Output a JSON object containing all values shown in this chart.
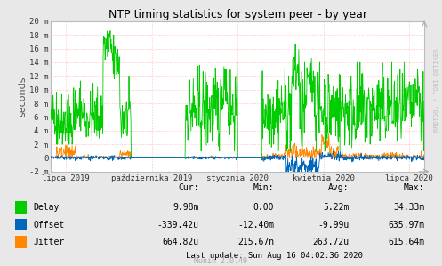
{
  "title": "NTP timing statistics for system peer - by year",
  "ylabel": "seconds",
  "fig_bg_color": "#e8e8e8",
  "plot_bg_color": "#ffffff",
  "grid_color": "#ff9999",
  "ylim": [
    -0.002,
    0.02
  ],
  "yticks_vals": [
    -0.002,
    0.0,
    0.002,
    0.004,
    0.006,
    0.008,
    0.01,
    0.012,
    0.014,
    0.016,
    0.018,
    0.02
  ],
  "ytick_labels": [
    "-2 m",
    "0",
    "2 m",
    "4 m",
    "6 m",
    "8 m",
    "10 m",
    "12 m",
    "14 m",
    "16 m",
    "18 m",
    "20 m"
  ],
  "xtick_labels": [
    "lipca 2019",
    "października 2019",
    "stycznia 2020",
    "kwietnia 2020",
    "lipca 2020"
  ],
  "xtick_positions": [
    0.04,
    0.27,
    0.5,
    0.73,
    0.96
  ],
  "delay_color": "#00cc00",
  "offset_color": "#0066bb",
  "jitter_color": "#ff8800",
  "stats_header": [
    "Cur:",
    "Min:",
    "Avg:",
    "Max:"
  ],
  "stats_rows": [
    [
      "Delay",
      "9.98m",
      "0.00",
      "5.22m",
      "34.33m"
    ],
    [
      "Offset",
      "-339.42u",
      "-12.40m",
      "-9.99u",
      "635.97m"
    ],
    [
      "Jitter",
      "664.82u",
      "215.67n",
      "263.72u",
      "615.64m"
    ]
  ],
  "last_update": "Last update: Sun Aug 16 04:02:36 2020",
  "munin_version": "Munin 2.0.49",
  "watermark": "RRDTOOL / TOBI OETIKER"
}
